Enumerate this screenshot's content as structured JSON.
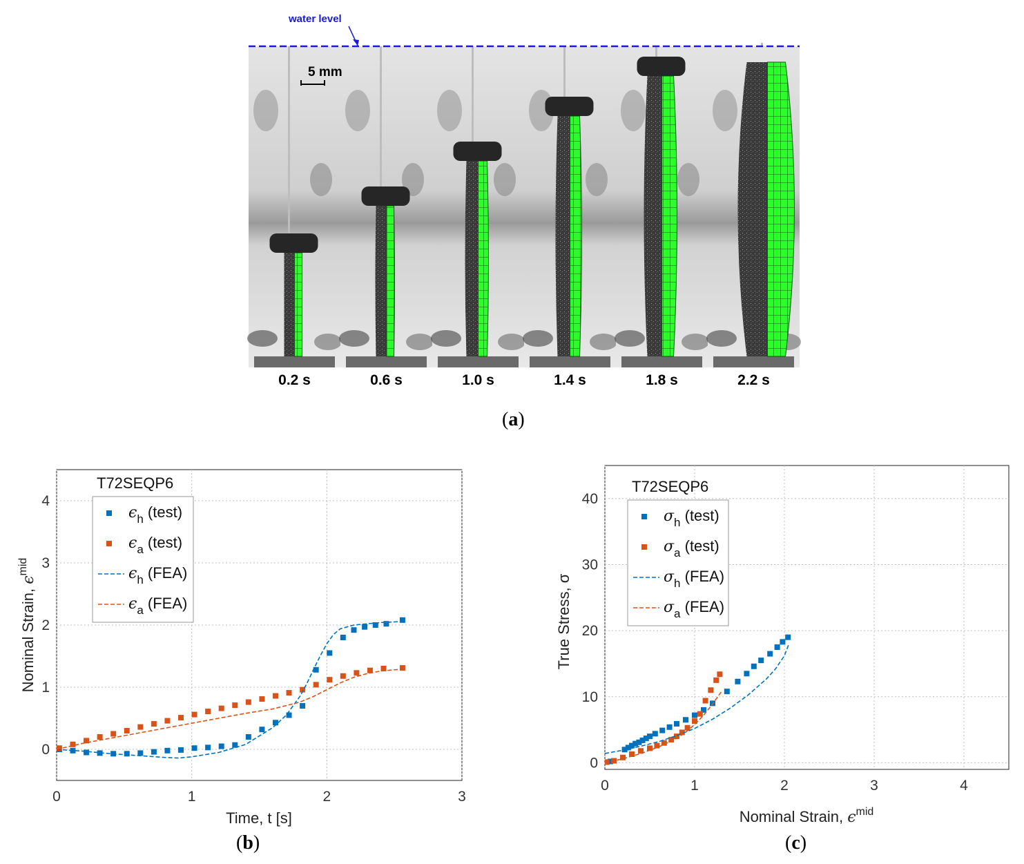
{
  "figure_a": {
    "water_level_label": "water level",
    "scale_bar_label": "5 mm",
    "frame_times": [
      "0.2 s",
      "0.6 s",
      "1.0 s",
      "1.4 s",
      "1.8 s",
      "2.2 s"
    ],
    "caption_letter": "a",
    "mesh_color": "#2aff2a"
  },
  "captions": {
    "b": "b",
    "c": "c"
  },
  "chart_data": [
    {
      "id": "b",
      "type": "scatter",
      "title": "T72SEQP6",
      "xlabel": "Time, t [s]",
      "ylabel_main": "Nominal Strain, ",
      "ylabel_symbol": "ϵ",
      "ylabel_sup": "mid",
      "xlim": [
        0,
        3
      ],
      "ylim": [
        -0.5,
        4.5
      ],
      "xticks": [
        0,
        1,
        2,
        3
      ],
      "yticks": [
        0,
        1,
        2,
        3,
        4
      ],
      "grid": true,
      "legend_position": "top-left",
      "series": [
        {
          "name": "test",
          "sym": "ϵ",
          "sub": "h",
          "style": "markers",
          "color": "#0072BD",
          "x": [
            0.02,
            0.12,
            0.22,
            0.32,
            0.42,
            0.52,
            0.62,
            0.72,
            0.82,
            0.92,
            1.02,
            1.12,
            1.22,
            1.32,
            1.42,
            1.52,
            1.62,
            1.72,
            1.82,
            1.92,
            2.02,
            2.12,
            2.2,
            2.28,
            2.36,
            2.44,
            2.56
          ],
          "y": [
            0.0,
            -0.02,
            -0.05,
            -0.06,
            -0.07,
            -0.07,
            -0.06,
            -0.04,
            -0.02,
            -0.01,
            0.02,
            0.03,
            0.05,
            0.07,
            0.2,
            0.32,
            0.43,
            0.55,
            0.7,
            1.28,
            1.55,
            1.8,
            1.92,
            1.97,
            2.0,
            2.02,
            2.08
          ]
        },
        {
          "name": "test",
          "sym": "ϵ",
          "sub": "a",
          "style": "markers",
          "color": "#D95319",
          "x": [
            0.02,
            0.12,
            0.22,
            0.32,
            0.42,
            0.52,
            0.62,
            0.72,
            0.82,
            0.92,
            1.02,
            1.12,
            1.22,
            1.32,
            1.42,
            1.52,
            1.62,
            1.72,
            1.82,
            1.92,
            2.02,
            2.12,
            2.22,
            2.32,
            2.42,
            2.56
          ],
          "y": [
            0.02,
            0.08,
            0.14,
            0.2,
            0.25,
            0.3,
            0.36,
            0.41,
            0.46,
            0.51,
            0.56,
            0.61,
            0.66,
            0.71,
            0.76,
            0.81,
            0.86,
            0.91,
            0.96,
            1.04,
            1.12,
            1.18,
            1.23,
            1.27,
            1.3,
            1.31
          ]
        },
        {
          "name": "FEA",
          "sym": "ϵ",
          "sub": "h",
          "style": "dashed",
          "color": "#0072BD",
          "x": [
            0,
            0.2,
            0.4,
            0.6,
            0.8,
            0.9,
            1.0,
            1.2,
            1.4,
            1.6,
            1.7,
            1.8,
            1.85,
            1.9,
            1.95,
            2.0,
            2.05,
            2.1,
            2.2,
            2.3,
            2.4,
            2.5,
            2.56
          ],
          "y": [
            0.0,
            -0.03,
            -0.07,
            -0.1,
            -0.13,
            -0.14,
            -0.12,
            -0.05,
            0.08,
            0.35,
            0.55,
            0.85,
            1.05,
            1.28,
            1.5,
            1.7,
            1.85,
            1.94,
            2.0,
            2.02,
            2.04,
            2.05,
            2.06
          ]
        },
        {
          "name": "FEA",
          "sym": "ϵ",
          "sub": "a",
          "style": "dashed",
          "color": "#D95319",
          "x": [
            0,
            0.2,
            0.4,
            0.6,
            0.8,
            1.0,
            1.2,
            1.4,
            1.6,
            1.8,
            1.9,
            2.0,
            2.1,
            2.2,
            2.3,
            2.4,
            2.5,
            2.56
          ],
          "y": [
            0.0,
            0.1,
            0.18,
            0.26,
            0.34,
            0.42,
            0.5,
            0.58,
            0.65,
            0.76,
            0.85,
            0.96,
            1.07,
            1.16,
            1.22,
            1.26,
            1.28,
            1.29
          ]
        }
      ]
    },
    {
      "id": "c",
      "type": "scatter",
      "title": "T72SEQP6",
      "xlabel_main": "Nominal Strain, ",
      "xlabel_symbol": "ϵ",
      "xlabel_sup": "mid",
      "ylabel": "True Stress, σ",
      "xlim": [
        0,
        4.5
      ],
      "ylim": [
        -1,
        45
      ],
      "xticks": [
        0,
        1,
        2,
        3,
        4
      ],
      "yticks": [
        0,
        10,
        20,
        30,
        40
      ],
      "grid": true,
      "legend_position": "top-left",
      "series": [
        {
          "name": "test",
          "sym": "σ",
          "sub": "h",
          "style": "markers",
          "color": "#0072BD",
          "x": [
            0.02,
            0.06,
            0.22,
            0.26,
            0.3,
            0.34,
            0.38,
            0.42,
            0.46,
            0.5,
            0.56,
            0.64,
            0.72,
            0.8,
            0.9,
            1.0,
            1.1,
            1.2,
            1.36,
            1.48,
            1.58,
            1.66,
            1.74,
            1.84,
            1.92,
            1.98,
            2.04
          ],
          "y": [
            0.1,
            0.2,
            2.0,
            2.3,
            2.6,
            2.9,
            3.1,
            3.4,
            3.7,
            4.0,
            4.4,
            4.9,
            5.4,
            5.9,
            6.5,
            7.2,
            8.0,
            9.0,
            10.8,
            12.3,
            13.5,
            14.6,
            15.5,
            16.5,
            17.5,
            18.3,
            19.0
          ]
        },
        {
          "name": "test",
          "sym": "σ",
          "sub": "a",
          "style": "markers",
          "color": "#D95319",
          "x": [
            0.02,
            0.1,
            0.2,
            0.3,
            0.4,
            0.5,
            0.58,
            0.66,
            0.74,
            0.8,
            0.86,
            0.92,
            1.0,
            1.06,
            1.12,
            1.18,
            1.24,
            1.28
          ],
          "y": [
            0.1,
            0.3,
            0.8,
            1.3,
            1.8,
            2.2,
            2.6,
            3.0,
            3.5,
            4.0,
            4.6,
            5.3,
            6.3,
            7.4,
            9.4,
            11.0,
            12.5,
            13.4
          ]
        },
        {
          "name": "FEA",
          "sym": "σ",
          "sub": "h",
          "style": "dashed",
          "color": "#0072BD",
          "x": [
            0,
            0.2,
            0.4,
            0.6,
            0.8,
            1.0,
            1.2,
            1.4,
            1.6,
            1.8,
            1.9,
            2.0,
            2.05
          ],
          "y": [
            1.4,
            1.9,
            2.5,
            3.2,
            4.1,
            5.2,
            6.6,
            8.3,
            10.3,
            12.7,
            14.2,
            16.2,
            18.0
          ]
        },
        {
          "name": "FEA",
          "sym": "σ",
          "sub": "a",
          "style": "dashed",
          "color": "#D95319",
          "x": [
            0,
            0.2,
            0.4,
            0.6,
            0.8,
            0.9,
            1.0,
            1.1,
            1.2,
            1.3
          ],
          "y": [
            0.0,
            0.6,
            1.4,
            2.4,
            3.7,
            4.6,
            5.8,
            7.2,
            8.9,
            10.8
          ]
        }
      ]
    }
  ]
}
